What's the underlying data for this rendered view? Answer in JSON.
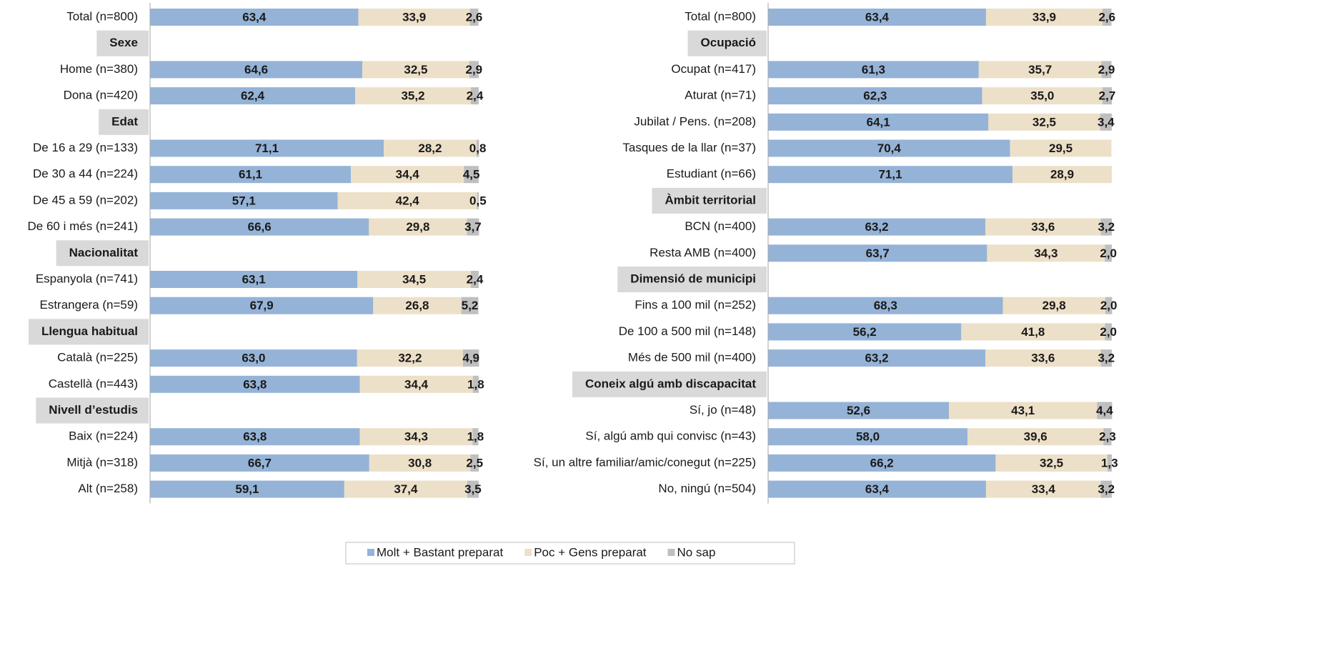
{
  "chart_data": [
    {
      "type": "bar",
      "orientation": "horizontal",
      "stacked": true,
      "xlim": [
        0,
        100
      ],
      "categories": [
        "Total (n=800)",
        "Sexe",
        "Home (n=380)",
        "Dona (n=420)",
        "Edat",
        "De 16 a 29 (n=133)",
        "De 30 a 44 (n=224)",
        "De 45 a 59 (n=202)",
        "De 60 i més (n=241)",
        "Nacionalitat",
        "Espanyola (n=741)",
        "Estrangera (n=59)",
        "Llengua habitual",
        "Català (n=225)",
        "Castellà (n=443)",
        "Nivell d’estudis",
        "Baix (n=224)",
        "Mitjà (n=318)",
        "Alt (n=258)"
      ],
      "series": [
        {
          "name": "Molt + Bastant preparat",
          "color": "#95b3d7",
          "values": [
            63.4,
            null,
            64.6,
            62.4,
            null,
            71.1,
            61.1,
            57.1,
            66.6,
            null,
            63.1,
            67.9,
            null,
            63.0,
            63.8,
            null,
            63.8,
            66.7,
            59.1
          ],
          "value_labels": [
            "63,4",
            null,
            "64,6",
            "62,4",
            null,
            "71,1",
            "61,1",
            "57,1",
            "66,6",
            null,
            "63,1",
            "67,9",
            null,
            "63,0",
            "63,8",
            null,
            "63,8",
            "66,7",
            "59,1"
          ]
        },
        {
          "name": "Poc + Gens preparat",
          "color": "#ede0c8",
          "values": [
            33.9,
            null,
            32.5,
            35.2,
            null,
            28.2,
            34.4,
            42.4,
            29.8,
            null,
            34.5,
            26.8,
            null,
            32.2,
            34.4,
            null,
            34.3,
            30.8,
            37.4
          ],
          "value_labels": [
            "33,9",
            null,
            "32,5",
            "35,2",
            null,
            "28,2",
            "34,4",
            "42,4",
            "29,8",
            null,
            "34,5",
            "26,8",
            null,
            "32,2",
            "34,4",
            null,
            "34,3",
            "30,8",
            "37,4"
          ]
        },
        {
          "name": "No sap",
          "color": "#bfbfbf",
          "values": [
            2.6,
            null,
            2.9,
            2.4,
            null,
            0.8,
            4.5,
            0.5,
            3.7,
            null,
            2.4,
            5.2,
            null,
            4.9,
            1.8,
            null,
            1.8,
            2.5,
            3.5
          ],
          "value_labels": [
            "2,6",
            null,
            "2,9",
            "2,4",
            null,
            "0,8",
            "4,5",
            "0,5",
            "3,7",
            null,
            "2,4",
            "5,2",
            null,
            "4,9",
            "1,8",
            null,
            "1,8",
            "2,5",
            "3,5"
          ]
        }
      ]
    },
    {
      "type": "bar",
      "orientation": "horizontal",
      "stacked": true,
      "xlim": [
        0,
        100
      ],
      "categories": [
        "Total (n=800)",
        "Ocupació",
        "Ocupat (n=417)",
        "Aturat (n=71)",
        "Jubilat / Pens. (n=208)",
        "Tasques de la llar (n=37)",
        "Estudiant (n=66)",
        "Àmbit territorial",
        "BCN (n=400)",
        "Resta AMB (n=400)",
        "Dimensió de municipi",
        "Fins a 100 mil (n=252)",
        "De 100 a 500 mil (n=148)",
        "Més de 500 mil (n=400)",
        "Coneix algú amb discapacitat",
        "Sí, jo (n=48)",
        "Sí, algú amb qui convisc (n=43)",
        "Sí, un altre familiar/amic/conegut (n=225)",
        "No, ningú (n=504)"
      ],
      "series": [
        {
          "color": "#95b3d7",
          "values": [
            63.4,
            null,
            61.3,
            62.3,
            64.1,
            70.4,
            71.1,
            null,
            63.2,
            63.7,
            null,
            68.3,
            56.2,
            63.2,
            null,
            52.6,
            58.0,
            66.2,
            63.4
          ],
          "value_labels": [
            "63,4",
            null,
            "61,3",
            "62,3",
            "64,1",
            "70,4",
            "71,1",
            null,
            "63,2",
            "63,7",
            null,
            "68,3",
            "56,2",
            "63,2",
            null,
            "52,6",
            "58,0",
            "66,2",
            "63,4"
          ]
        },
        {
          "color": "#ede0c8",
          "values": [
            33.9,
            null,
            35.7,
            35.0,
            32.5,
            29.5,
            28.9,
            null,
            33.6,
            34.3,
            null,
            29.8,
            41.8,
            33.6,
            null,
            43.1,
            39.6,
            32.5,
            33.4
          ],
          "value_labels": [
            "33,9",
            null,
            "35,7",
            "35,0",
            "32,5",
            "29,5",
            "28,9",
            null,
            "33,6",
            "34,3",
            null,
            "29,8",
            "41,8",
            "33,6",
            null,
            "43,1",
            "39,6",
            "32,5",
            "33,4"
          ]
        },
        {
          "color": "#bfbfbf",
          "values": [
            2.6,
            null,
            2.9,
            2.7,
            3.4,
            null,
            null,
            null,
            3.2,
            2.0,
            null,
            2.0,
            2.0,
            3.2,
            null,
            4.4,
            2.3,
            1.3,
            3.2
          ],
          "value_labels": [
            "2,6",
            null,
            "2,9",
            "2,7",
            "3,4",
            null,
            null,
            null,
            "3,2",
            "2,0",
            null,
            "2,0",
            "2,0",
            "3,2",
            null,
            "4,4",
            "2,3",
            "1,3",
            "3,2"
          ]
        }
      ]
    }
  ]
}
